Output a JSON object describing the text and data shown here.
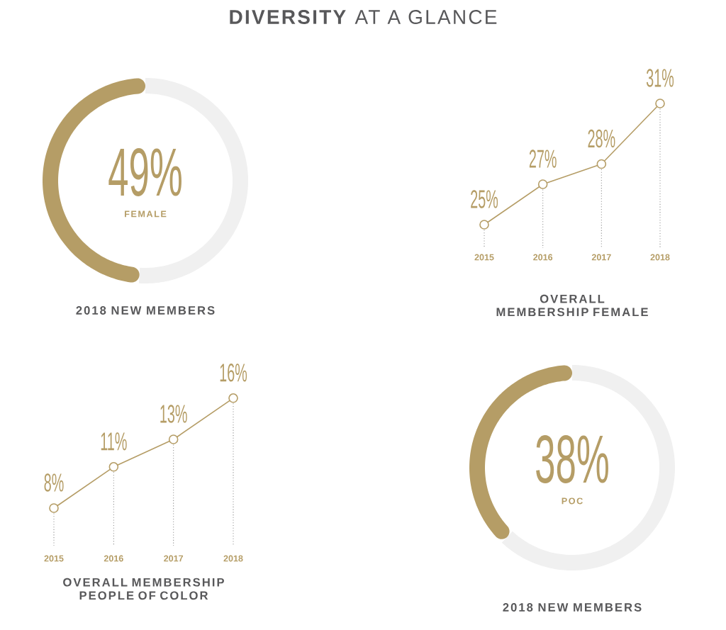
{
  "chart_data": [
    {
      "type": "other",
      "title": "**DIVERSITY** AT A GLANCE"
    },
    {
      "type": "donut",
      "title": "2018 NEW MEMBERS",
      "annotations": [
        "FEMALE"
      ],
      "categories": [
        null,
        null
      ],
      "values": [
        49,
        51
      ],
      "colors": [
        "#b59d66",
        "#f0f0f0"
      ],
      "value_labels": [
        "49%",
        null
      ]
    },
    {
      "type": "line",
      "title": "OVERALL MEMBERSHIP FEMALE",
      "categories": [
        "2015",
        "2016",
        "2017",
        "2018"
      ],
      "values": [
        25,
        27,
        28,
        31
      ],
      "value_labels": [
        "25%",
        "27%",
        "28%",
        "31%"
      ],
      "color": "#b59d66",
      "marker": "circle",
      "tick_labels": "x",
      "grid": "x"
    },
    {
      "type": "line",
      "title": "OVERALL MEMBERSHIP PEOPLE OF COLOR",
      "categories": [
        "2015",
        "2016",
        "2017",
        "2018"
      ],
      "values": [
        8,
        11,
        13,
        16
      ],
      "value_labels": [
        "8%",
        "11%",
        "13%",
        "16%"
      ],
      "color": "#b59d66",
      "marker": "circle",
      "tick_labels": "x",
      "grid": "x"
    },
    {
      "type": "donut",
      "title": "2018 NEW MEMBERS",
      "annotations": [
        "POC"
      ],
      "categories": [
        null,
        null
      ],
      "values": [
        38,
        62
      ],
      "colors": [
        "#b59d66",
        "#f0f0f0"
      ],
      "value_labels": [
        "38%",
        null
      ]
    }
  ]
}
